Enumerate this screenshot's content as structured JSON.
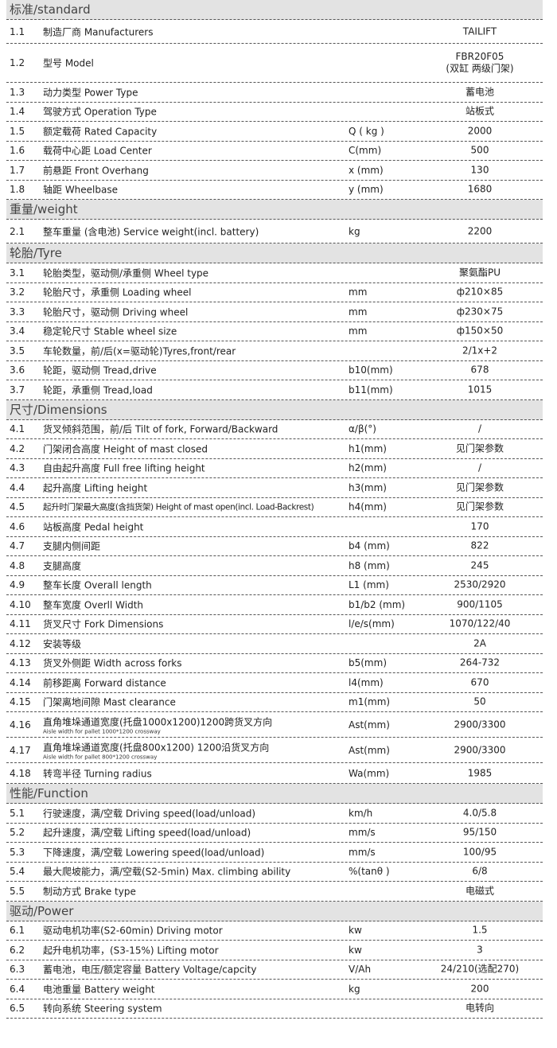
{
  "sections": [
    {
      "title": "标准/standard",
      "rows": [
        {
          "no": "1.1",
          "label": "制造厂商 Manufacturers",
          "unit": "",
          "value": "TAILIFT",
          "h": "r30"
        },
        {
          "no": "1.2",
          "label": "型号 Model",
          "unit": "",
          "value": "FBR20F05\n(双缸 两级门架)",
          "h": "r48"
        },
        {
          "no": "1.3",
          "label": "动力类型 Power Type",
          "unit": "",
          "value": "蓄电池"
        },
        {
          "no": "1.4",
          "label": "驾驶方式 Operation Type",
          "unit": "",
          "value": "站板式"
        },
        {
          "no": "1.5",
          "label": "额定载荷 Rated Capacity",
          "unit": "Q ( kg )",
          "value": "2000"
        },
        {
          "no": "1.6",
          "label": "载荷中心距 Load Center",
          "unit": "C(mm)",
          "value": "500"
        },
        {
          "no": "1.7",
          "label": "前悬距 Front Overhang",
          "unit": "x (mm)",
          "value": "130"
        },
        {
          "no": "1.8",
          "label": "轴距 Wheelbase",
          "unit": "y (mm)",
          "value": "1680"
        }
      ]
    },
    {
      "title": "重量/weight",
      "rows": [
        {
          "no": "2.1",
          "label": "整车重量 (含电池) Service weight(incl. battery)",
          "unit": "kg",
          "value": "2200",
          "h": "r30"
        }
      ]
    },
    {
      "title": "轮胎/Tyre",
      "rows": [
        {
          "no": "3.1",
          "label": "轮胎类型，驱动侧/承重侧  Wheel type",
          "unit": "",
          "value": "聚氨酯PU"
        },
        {
          "no": "3.2",
          "label": "轮胎尺寸，承重侧 Loading wheel",
          "unit": "mm",
          "value": "ф210×85"
        },
        {
          "no": "3.3",
          "label": "轮胎尺寸，驱动侧 Driving wheel",
          "unit": "mm",
          "value": "ф230×75"
        },
        {
          "no": "3.4",
          "label": "稳定轮尺寸 Stable wheel size",
          "unit": "mm",
          "value": "ф150×50"
        },
        {
          "no": "3.5",
          "label": "车轮数量，前/后(x=驱动轮)Tyres,front/rear",
          "unit": "",
          "value": "2/1x+2"
        },
        {
          "no": "3.6",
          "label": "轮距，驱动侧 Tread,drive",
          "unit": "b10(mm)",
          "value": "678"
        },
        {
          "no": "3.7",
          "label": "轮距，承重侧 Tread,load",
          "unit": "b11(mm)",
          "value": "1015"
        }
      ]
    },
    {
      "title": "尺寸/Dimensions",
      "rows": [
        {
          "no": "4.1",
          "label": "货叉倾斜范围，前/后  Tilt of fork, Forward/Backward",
          "unit": "α/β(°)",
          "value": "/"
        },
        {
          "no": "4.2",
          "label": "门架闭合高度 Height of mast closed",
          "unit": "h1(mm)",
          "value": "见门架参数"
        },
        {
          "no": "4.3",
          "label": "自由起升高度 Full free lifting height",
          "unit": "h2(mm)",
          "value": "/"
        },
        {
          "no": "4.4",
          "label": "起升高度 Lifting height",
          "unit": "h3(mm)",
          "value": "见门架参数"
        },
        {
          "no": "4.5",
          "label": "起升时门架最大高度(含挡货架) Height of mast open(incl. Load-Backrest)",
          "unit": "h4(mm)",
          "value": "见门架参数",
          "cond": true
        },
        {
          "no": "4.6",
          "label": "站板高度  Pedal height",
          "unit": "",
          "value": "170"
        },
        {
          "no": "4.7",
          "label": "支腿内侧间距",
          "unit": "b4 (mm)",
          "value": "822"
        },
        {
          "no": "4.8",
          "label": "支腿高度",
          "unit": "h8 (mm)",
          "value": "245"
        },
        {
          "no": "4.9",
          "label": "整车长度  Overall length",
          "unit": "L1 (mm)",
          "value": "2530/2920"
        },
        {
          "no": "4.10",
          "label": "整车宽度  Overll Width",
          "unit": "b1/b2 (mm)",
          "value": "900/1105"
        },
        {
          "no": "4.11",
          "label": "货叉尺寸  Fork Dimensions",
          "unit": "l/e/s(mm)",
          "value": "1070/122/40"
        },
        {
          "no": "4.12",
          "label": "安装等级",
          "unit": "",
          "value": "2A"
        },
        {
          "no": "4.13",
          "label": "货叉外侧距 Width across forks",
          "unit": "b5(mm)",
          "value": "264-732"
        },
        {
          "no": "4.14",
          "label": "前移距离 Forward distance",
          "unit": "l4(mm)",
          "value": "670"
        },
        {
          "no": "4.15",
          "label": "门架离地间隙  Mast clearance",
          "unit": "m1(mm)",
          "value": "50"
        },
        {
          "no": "4.16",
          "label": "直角堆垛通道宽度(托盘1000x1200)1200跨货叉方向",
          "sub": "Aisle width for pallet 1000*1200 crossway",
          "unit": "Ast(mm)",
          "value": "2900/3300",
          "h": "r31"
        },
        {
          "no": "4.17",
          "label": "直角堆垛通道宽度(托盘800x1200) 1200沿货叉方向",
          "sub": "Aisle width for pallet 800*1200 crossway",
          "unit": "Ast(mm)",
          "value": "2900/3300",
          "h": "r31"
        },
        {
          "no": "4.18",
          "label": "转弯半径  Turning radius",
          "unit": "Wa(mm)",
          "value": "1985",
          "h": "r26"
        }
      ]
    },
    {
      "title": "性能/Function",
      "rows": [
        {
          "no": "5.1",
          "label": "行驶速度，满/空载 Driving speed(load/unload)",
          "unit": "km/h",
          "value": "4.0/5.8"
        },
        {
          "no": "5.2",
          "label": "起升速度，满/空载 Lifting speed(load/unload)",
          "unit": "mm/s",
          "value": "95/150"
        },
        {
          "no": "5.3",
          "label": "下降速度，满/空载 Lowering speed(load/unload)",
          "unit": "mm/s",
          "value": "100/95"
        },
        {
          "no": "5.4",
          "label": "最大爬坡能力，满/空载(S2-5min) Max. climbing ability",
          "unit": "%(tanθ )",
          "value": "6/8"
        },
        {
          "no": "5.5",
          "label": "制动方式 Brake type",
          "unit": "",
          "value": "电磁式"
        }
      ]
    },
    {
      "title": "驱动/Power",
      "rows": [
        {
          "no": "6.1",
          "label": "驱动电机功率(S2-60min) Driving motor",
          "unit": "kw",
          "value": "1.5"
        },
        {
          "no": "6.2",
          "label": "起升电机功率，(S3-15%) Lifting motor",
          "unit": "kw",
          "value": "3"
        },
        {
          "no": "6.3",
          "label": "蓄电池，电压/额定容量 Battery Voltage/capcity",
          "unit": "V/Ah",
          "value": "24/210(选配270)"
        },
        {
          "no": "6.4",
          "label": "电池重量 Battery weight",
          "unit": "kg",
          "value": "200"
        },
        {
          "no": "6.5",
          "label": "转向系统 Steering system",
          "unit": "",
          "value": "电转向"
        }
      ]
    }
  ]
}
